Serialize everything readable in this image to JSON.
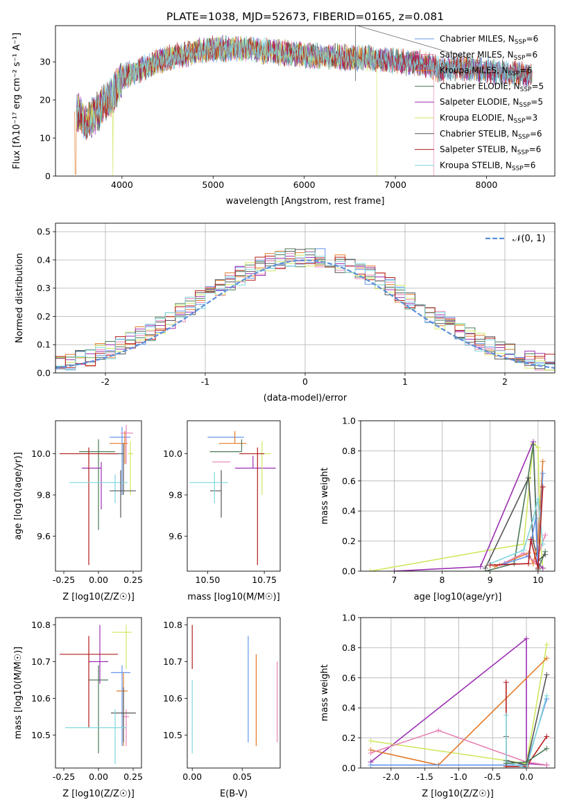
{
  "figure_title": "PLATE=1038, MJD=52673, FIBERID=0165, z=0.081",
  "series_colors": [
    "#6495ed",
    "#e882b4",
    "#e07a2a",
    "#4a7a55",
    "#9a2fb0",
    "#cfe860",
    "#555555",
    "#b31b1b",
    "#7fd6dc"
  ],
  "chart_data": [
    {
      "type": "line",
      "xlabel": "wavelength [Angstrom, rest frame]",
      "ylabel": "Flux [fλ10⁻¹⁷ erg cm⁻² s⁻¹ A⁻¹]",
      "xlim": [
        3270,
        8750
      ],
      "ylim": [
        0,
        39.5
      ],
      "xticks": [
        4000,
        5000,
        6000,
        7000,
        8000
      ],
      "yticks": [
        0,
        10,
        20,
        30
      ],
      "grid": false,
      "legend_position": "upper-right",
      "legend": [
        "Chabrier MILES, N_SSP=6",
        "Salpeter MILES, N_SSP=6",
        "Kroupa MILES, N_SSP=6",
        "Chabrier ELODIE, N_SSP=5",
        "Salpeter ELODIE, N_SSP=5",
        "Kroupa ELODIE, N_SSP=3",
        "Chabrier STELIB, N_SSP=6",
        "Salpeter STELIB, N_SSP=6",
        "Kroupa STELIB, N_SSP=6"
      ],
      "continuum_knots": {
        "x": [
          3500,
          3600,
          3700,
          3800,
          3900,
          4000,
          4100,
          4300,
          4500,
          4700,
          4900,
          5100,
          5300,
          5500,
          5700,
          5900,
          6100,
          6300,
          6500,
          6700,
          6900,
          7100,
          7300,
          7500,
          7700,
          7900,
          8100,
          8300,
          8500
        ],
        "y": [
          17,
          14,
          16,
          19,
          21,
          26,
          27,
          29,
          31,
          32,
          33,
          33.5,
          33.5,
          33,
          32.5,
          32,
          31.5,
          31.5,
          31,
          31,
          30.5,
          30,
          29.5,
          28,
          28.5,
          28,
          27.5,
          27,
          26.5
        ]
      }
    },
    {
      "type": "histogram",
      "xlabel": "(data-model)/error",
      "ylabel": "Normed distribution",
      "xlim": [
        -2.5,
        2.5
      ],
      "ylim": [
        0,
        0.53
      ],
      "xticks": [
        -2,
        -1,
        0,
        1,
        2
      ],
      "yticks": [
        0.0,
        0.1,
        0.2,
        0.3,
        0.4,
        0.5
      ],
      "grid": true,
      "legend": [
        "𝒩(0, 1)"
      ],
      "legend_position": "upper-right",
      "bin_width": 0.1,
      "reference_curve": "normal(0,1)"
    },
    {
      "type": "errorbar",
      "xlabel": "Z [log10(Z/Z☉)]",
      "ylabel": "age  [log10(age/yr)]",
      "xlim": [
        -0.31,
        0.31
      ],
      "ylim": [
        9.43,
        10.16
      ],
      "xticks": [
        -0.25,
        0.0,
        0.25
      ],
      "yticks": [
        9.6,
        9.8,
        10.0
      ],
      "points": [
        {
          "x": 0.17,
          "xerr": [
            0.09,
            0.06
          ],
          "y": 10.08,
          "yerr": [
            0.28,
            0.05
          ]
        },
        {
          "x": 0.2,
          "xerr": [
            0.04,
            0.05
          ],
          "y": 10.1,
          "yerr": [
            0.15,
            0.04
          ]
        },
        {
          "x": 0.19,
          "xerr": [
            0.11,
            0.02
          ],
          "y": 10.05,
          "yerr": [
            0.1,
            0.06
          ]
        },
        {
          "x": 0.0,
          "xerr": [
            0.14,
            0.12
          ],
          "y": 10.01,
          "yerr": [
            0.38,
            0.06
          ]
        },
        {
          "x": 0.02,
          "xerr": [
            0.14,
            0.0
          ],
          "y": 9.93,
          "yerr": [
            0.2,
            0.03
          ]
        },
        {
          "x": 0.23,
          "xerr": [
            0.02,
            0.02
          ],
          "y": 10.0,
          "yerr": [
            0.2,
            0.06
          ]
        },
        {
          "x": 0.18,
          "xerr": [
            0.13,
            0.0
          ],
          "y": 10.0,
          "yerr": [
            0.2,
            0.05
          ]
        },
        {
          "x": -0.07,
          "xerr": [
            0.21,
            0.21
          ],
          "y": 10.0,
          "yerr": [
            0.54,
            0.03
          ]
        },
        {
          "x": 0.12,
          "xerr": [
            0.33,
            0.09
          ],
          "y": 9.86,
          "yerr": [
            0.1,
            0.04
          ]
        },
        {
          "x": 0.16,
          "xerr": [
            0.08,
            0.11
          ],
          "y": 9.82,
          "yerr": [
            0.13,
            0.1
          ]
        }
      ]
    },
    {
      "type": "errorbar",
      "xlabel": "mass [log10(M/M☉)]",
      "ylabel": "",
      "xlim": [
        10.41,
        10.82
      ],
      "ylim": [
        9.43,
        10.16
      ],
      "xticks": [
        10.5,
        10.75
      ],
      "yticks": [
        9.6,
        9.8,
        10.0
      ],
      "points": [
        {
          "x": 10.6,
          "xerr": [
            0.1,
            0.06
          ],
          "y": 10.08,
          "yerr": [
            0.0,
            0.0
          ]
        },
        {
          "x": 10.58,
          "xerr": [
            0.06,
            0.02
          ],
          "y": 9.96,
          "yerr": [
            0.0,
            0.0
          ]
        },
        {
          "x": 10.62,
          "xerr": [
            0.07,
            0.05
          ],
          "y": 10.05,
          "yerr": [
            0.0,
            0.06
          ]
        },
        {
          "x": 10.65,
          "xerr": [
            0.14,
            0.0
          ],
          "y": 10.01,
          "yerr": [
            0.0,
            0.06
          ]
        },
        {
          "x": 10.7,
          "xerr": [
            0.08,
            0.1
          ],
          "y": 9.93,
          "yerr": [
            0.0,
            0.06
          ]
        },
        {
          "x": 10.74,
          "xerr": [
            0.0,
            0.04
          ],
          "y": 10.0,
          "yerr": [
            0.2,
            0.06
          ]
        },
        {
          "x": 10.56,
          "xerr": [
            0.05,
            0.0
          ],
          "y": 9.82,
          "yerr": [
            0.13,
            0.1
          ]
        },
        {
          "x": 10.72,
          "xerr": [
            0.08,
            0.03
          ],
          "y": 10.0,
          "yerr": [
            0.54,
            0.03
          ]
        },
        {
          "x": 10.53,
          "xerr": [
            0.11,
            0.06
          ],
          "y": 9.86,
          "yerr": [
            0.1,
            0.05
          ]
        }
      ]
    },
    {
      "type": "line",
      "xlabel": "age  [log10(age/yr)]",
      "ylabel": "mass weight",
      "xlim": [
        6.3,
        10.35
      ],
      "ylim": [
        0,
        1.0
      ],
      "xticks": [
        7,
        8,
        9,
        10
      ],
      "yticks": [
        0.0,
        0.2,
        0.4,
        0.6,
        0.8,
        1.0
      ],
      "grid": true
    },
    {
      "type": "errorbar",
      "xlabel": "Z [log10(Z/Z☉)]",
      "ylabel": "mass [log10(M/M☉)]",
      "xlim": [
        -0.31,
        0.31
      ],
      "ylim": [
        10.41,
        10.82
      ],
      "xticks": [
        -0.25,
        0.0,
        0.25
      ],
      "yticks": [
        10.5,
        10.6,
        10.7,
        10.8
      ],
      "points": [
        {
          "x": 0.17,
          "xerr": [
            0.08,
            0.06
          ],
          "y": 10.67,
          "yerr": [
            0.2,
            0.02
          ]
        },
        {
          "x": 0.2,
          "xerr": [
            0.02,
            0.02
          ],
          "y": 10.55,
          "yerr": [
            0.08,
            0.02
          ]
        },
        {
          "x": 0.18,
          "xerr": [
            0.05,
            0.03
          ],
          "y": 10.62,
          "yerr": [
            0.15,
            0.05
          ]
        },
        {
          "x": 0.0,
          "xerr": [
            0.07,
            0.07
          ],
          "y": 10.65,
          "yerr": [
            0.2,
            0.04
          ]
        },
        {
          "x": 0.01,
          "xerr": [
            0.08,
            0.06
          ],
          "y": 10.7,
          "yerr": [
            0.06,
            0.1
          ]
        },
        {
          "x": 0.2,
          "xerr": [
            0.1,
            0.04
          ],
          "y": 10.78,
          "yerr": [
            0.1,
            0.02
          ]
        },
        {
          "x": 0.18,
          "xerr": [
            0.09,
            0.09
          ],
          "y": 10.56,
          "yerr": [
            0.08,
            0.07
          ]
        },
        {
          "x": -0.07,
          "xerr": [
            0.21,
            0.21
          ],
          "y": 10.72,
          "yerr": [
            0.2,
            0.05
          ]
        },
        {
          "x": 0.12,
          "xerr": [
            0.36,
            0.08
          ],
          "y": 10.52,
          "yerr": [
            0.1,
            0.05
          ]
        }
      ]
    },
    {
      "type": "errorbar",
      "xlabel": "E(B-V)",
      "ylabel": "",
      "xlim": [
        -0.005,
        0.088
      ],
      "ylim": [
        10.41,
        10.82
      ],
      "xticks": [
        0.0,
        0.05
      ],
      "xtick_labels": [
        "0.00",
        "0.05"
      ],
      "yticks": [
        10.5,
        10.6,
        10.7,
        10.8
      ],
      "points": [
        {
          "x": 0.056,
          "y": 10.62,
          "yerr": [
            0.14,
            0.15
          ]
        },
        {
          "x": 0.064,
          "y": 10.59,
          "yerr": [
            0.12,
            0.13
          ]
        },
        {
          "x": 0.085,
          "y": 10.59,
          "yerr": [
            0.11,
            0.11
          ]
        },
        {
          "x": 0.0,
          "y": 10.73,
          "yerr": [
            0.05,
            0.07
          ]
        },
        {
          "x": 0.0,
          "y": 10.6,
          "yerr": [
            0.15,
            0.05
          ]
        }
      ]
    },
    {
      "type": "line",
      "xlabel": "Z [log10(Z/Z☉)]",
      "ylabel": "mass weight",
      "xlim": [
        -2.45,
        0.42
      ],
      "ylim": [
        0,
        1.0
      ],
      "xticks": [
        -2.0,
        -1.5,
        -1.0,
        -0.5,
        0.0
      ],
      "yticks": [
        0.0,
        0.2,
        0.4,
        0.6,
        0.8,
        1.0
      ],
      "grid": true
    }
  ]
}
